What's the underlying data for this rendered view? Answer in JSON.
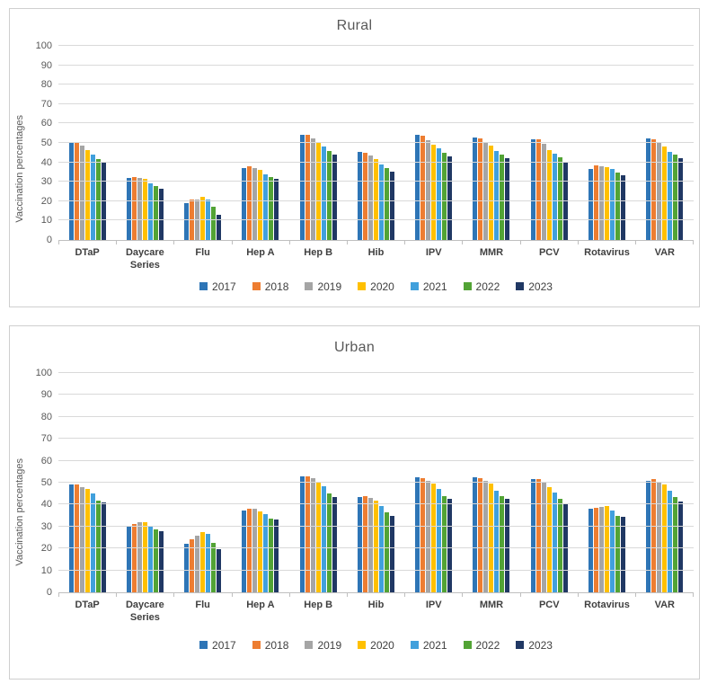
{
  "page": {
    "background": "#ffffff",
    "axis_color": "#bfbfbf",
    "gridline_color": "#d9d9d9",
    "title_color": "#595959"
  },
  "chart_data": [
    {
      "type": "bar",
      "title": "Rural",
      "xlabel": "",
      "ylabel": "Vaccination percentages",
      "ylim": [
        0,
        100
      ],
      "yticks": [
        0,
        10,
        20,
        30,
        40,
        50,
        60,
        70,
        80,
        90,
        100
      ],
      "grid": true,
      "legend_position": "bottom",
      "categories": [
        "DTaP",
        "Daycare Series",
        "Flu",
        "Hep A",
        "Hep B",
        "Hib",
        "IPV",
        "MMR",
        "PCV",
        "Rotavirus",
        "VAR"
      ],
      "series": [
        {
          "name": "2017",
          "color": "#2E75B6",
          "values": [
            50,
            32,
            19,
            37,
            54,
            45.5,
            54,
            53,
            52,
            36.5,
            52.5
          ]
        },
        {
          "name": "2018",
          "color": "#ED7D31",
          "values": [
            50,
            32.5,
            21,
            38,
            54,
            45,
            53.5,
            52.5,
            52,
            38.5,
            52
          ]
        },
        {
          "name": "2019",
          "color": "#A5A5A5",
          "values": [
            48.5,
            32,
            21,
            37,
            52.5,
            43.5,
            51.5,
            50.5,
            49.5,
            38,
            50.5
          ]
        },
        {
          "name": "2020",
          "color": "#FFC000",
          "values": [
            46.5,
            31.5,
            22,
            36,
            50.5,
            41.5,
            49,
            48.5,
            46.5,
            37.5,
            48
          ]
        },
        {
          "name": "2021",
          "color": "#41A0DC",
          "values": [
            44,
            29,
            21,
            34,
            48,
            39,
            47,
            46,
            44.5,
            36.5,
            45.5
          ]
        },
        {
          "name": "2022",
          "color": "#52A335",
          "values": [
            41.5,
            28,
            17,
            32.5,
            46,
            37,
            45,
            44,
            42.5,
            34.5,
            44
          ]
        },
        {
          "name": "2023",
          "color": "#203864",
          "values": [
            40.5,
            26.5,
            13,
            31.5,
            44,
            35,
            43,
            42,
            40.5,
            33.5,
            42
          ]
        }
      ]
    },
    {
      "type": "bar",
      "title": "Urban",
      "xlabel": "",
      "ylabel": "Vaccination percentages",
      "ylim": [
        0,
        100
      ],
      "yticks": [
        0,
        10,
        20,
        30,
        40,
        50,
        60,
        70,
        80,
        90,
        100
      ],
      "grid": true,
      "legend_position": "bottom",
      "categories": [
        "DTaP",
        "Daycare Series",
        "Flu",
        "Hep A",
        "Hep B",
        "Hib",
        "IPV",
        "MMR",
        "PCV",
        "Rotavirus",
        "VAR"
      ],
      "series": [
        {
          "name": "2017",
          "color": "#2E75B6",
          "values": [
            49,
            30.5,
            22,
            37.5,
            53,
            43.5,
            52.5,
            52.5,
            51.5,
            38,
            51
          ]
        },
        {
          "name": "2018",
          "color": "#ED7D31",
          "values": [
            49,
            31,
            24,
            38,
            53,
            44,
            52,
            52,
            51.5,
            38.5,
            51.5
          ]
        },
        {
          "name": "2019",
          "color": "#A5A5A5",
          "values": [
            48,
            32,
            26,
            38,
            52,
            43,
            51,
            51,
            50,
            39,
            50
          ]
        },
        {
          "name": "2020",
          "color": "#FFC000",
          "values": [
            47,
            32,
            27.5,
            37,
            50.5,
            42,
            49.5,
            49.5,
            48,
            39.5,
            49
          ]
        },
        {
          "name": "2021",
          "color": "#41A0DC",
          "values": [
            45,
            30.5,
            26.5,
            35.5,
            48.5,
            39.5,
            47,
            46.5,
            45.5,
            37.5,
            46.5
          ]
        },
        {
          "name": "2022",
          "color": "#52A335",
          "values": [
            42,
            28.5,
            22.5,
            33.5,
            45,
            36.5,
            44,
            44,
            42.5,
            35,
            43.5
          ]
        },
        {
          "name": "2023",
          "color": "#203864",
          "values": [
            41,
            28,
            19.5,
            33,
            43.5,
            35,
            42.5,
            42.5,
            40.5,
            34.5,
            41.5
          ]
        }
      ]
    }
  ]
}
